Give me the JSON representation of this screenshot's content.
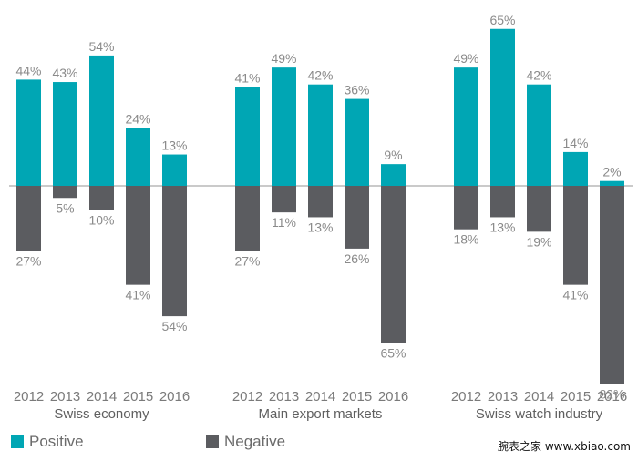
{
  "chart_data": {
    "type": "bar",
    "groups": [
      {
        "name": "Swiss economy",
        "years": [
          "2012",
          "2013",
          "2014",
          "2015",
          "2016"
        ],
        "positive": [
          44,
          43,
          54,
          24,
          13
        ],
        "negative": [
          27,
          5,
          10,
          41,
          54
        ]
      },
      {
        "name": "Main export markets",
        "years": [
          "2012",
          "2013",
          "2014",
          "2015",
          "2016"
        ],
        "positive": [
          41,
          49,
          42,
          36,
          9
        ],
        "negative": [
          27,
          11,
          13,
          26,
          65
        ]
      },
      {
        "name": "Swiss watch industry",
        "years": [
          "2012",
          "2013",
          "2014",
          "2015",
          "2016"
        ],
        "positive": [
          49,
          65,
          42,
          14,
          2
        ],
        "negative": [
          18,
          13,
          19,
          41,
          82
        ]
      }
    ],
    "series": [
      {
        "name": "Positive",
        "color": "#00a6b4"
      },
      {
        "name": "Negative",
        "color": "#5b5c60"
      }
    ]
  },
  "legend": {
    "positive_label": "Positive",
    "negative_label": "Negative"
  },
  "watermark": "腕表之家 www.xbiao.com"
}
